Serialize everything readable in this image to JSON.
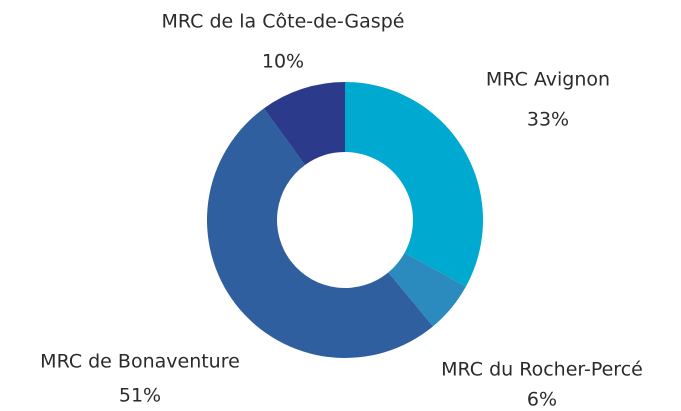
{
  "chart_data": {
    "type": "donut",
    "categories": [
      "MRC Avignon",
      "MRC du Rocher-Percé",
      "MRC de Bonaventure",
      "MRC de la Côte-de-Gaspé"
    ],
    "values": [
      33,
      6,
      51,
      10
    ],
    "value_labels": [
      "33%",
      "6%",
      "51%",
      "10%"
    ],
    "colors": [
      "#00a9d0",
      "#2b8bbf",
      "#2f5f9e",
      "#2b3a8a"
    ]
  }
}
